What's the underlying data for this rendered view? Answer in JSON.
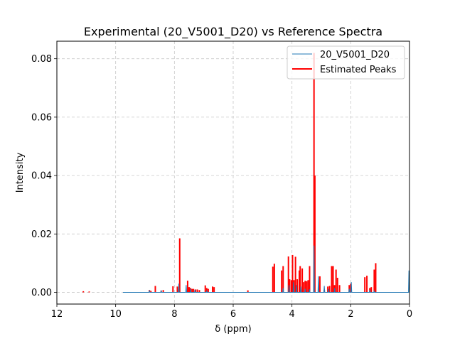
{
  "chart_data": {
    "type": "line",
    "title": "Experimental (20_V5001_D20) vs Reference Spectra",
    "xlabel": "δ (ppm)",
    "ylabel": "Intensity",
    "xlim": [
      12,
      0
    ],
    "ylim": [
      -0.004,
      0.086
    ],
    "x_reversed": true,
    "grid": true,
    "legend_position": "top-right",
    "xticks": [
      12,
      10,
      8,
      6,
      4,
      2,
      0
    ],
    "xtick_labels": [
      "12",
      "10",
      "8",
      "6",
      "4",
      "2",
      "0"
    ],
    "yticks": [
      0.0,
      0.02,
      0.04,
      0.06,
      0.08
    ],
    "ytick_labels": [
      "0.00",
      "0.02",
      "0.04",
      "0.06",
      "0.08"
    ],
    "series": [
      {
        "name": "20_V5001_D20",
        "kind": "spectrum",
        "color": "#1f77b4",
        "x_start": 9.75,
        "x_end": 0.0,
        "baseline": 0.0,
        "peaks": [
          {
            "x": 8.85,
            "y": 0.0005
          },
          {
            "x": 8.45,
            "y": 0.0007
          },
          {
            "x": 7.85,
            "y": 0.003
          },
          {
            "x": 7.6,
            "y": 0.0025
          },
          {
            "x": 7.45,
            "y": 0.0012
          },
          {
            "x": 7.3,
            "y": 0.0009
          },
          {
            "x": 6.9,
            "y": 0.0006
          },
          {
            "x": 4.3,
            "y": 0.0015
          },
          {
            "x": 4.1,
            "y": 0.0025
          },
          {
            "x": 3.95,
            "y": 0.0035
          },
          {
            "x": 3.85,
            "y": 0.0025
          },
          {
            "x": 3.7,
            "y": 0.002
          },
          {
            "x": 3.55,
            "y": 0.0012
          },
          {
            "x": 3.4,
            "y": 0.001
          },
          {
            "x": 3.25,
            "y": 0.016
          },
          {
            "x": 3.1,
            "y": 0.0055
          },
          {
            "x": 2.9,
            "y": 0.0022
          },
          {
            "x": 2.75,
            "y": 0.0012
          },
          {
            "x": 2.55,
            "y": 0.0015
          },
          {
            "x": 2.05,
            "y": 0.0012
          },
          {
            "x": 1.98,
            "y": 0.0035
          },
          {
            "x": 1.35,
            "y": 0.0008
          },
          {
            "x": 1.2,
            "y": 0.0006
          },
          {
            "x": 0.02,
            "y": 0.0075
          }
        ]
      },
      {
        "name": "Estimated Peaks",
        "kind": "sticks",
        "color": "#ff0000",
        "peaks": [
          {
            "x": 11.1,
            "y": 0.0004
          },
          {
            "x": 10.9,
            "y": 0.0003
          },
          {
            "x": 8.85,
            "y": 0.0008
          },
          {
            "x": 8.8,
            "y": 0.0005
          },
          {
            "x": 8.65,
            "y": 0.0022
          },
          {
            "x": 8.45,
            "y": 0.0006
          },
          {
            "x": 8.38,
            "y": 0.0008
          },
          {
            "x": 8.05,
            "y": 0.0021
          },
          {
            "x": 7.9,
            "y": 0.002
          },
          {
            "x": 7.82,
            "y": 0.0185
          },
          {
            "x": 7.55,
            "y": 0.004
          },
          {
            "x": 7.5,
            "y": 0.0018
          },
          {
            "x": 7.45,
            "y": 0.0015
          },
          {
            "x": 7.4,
            "y": 0.0012
          },
          {
            "x": 7.35,
            "y": 0.0012
          },
          {
            "x": 7.28,
            "y": 0.001
          },
          {
            "x": 7.22,
            "y": 0.001
          },
          {
            "x": 7.15,
            "y": 0.0008
          },
          {
            "x": 6.95,
            "y": 0.0024
          },
          {
            "x": 6.9,
            "y": 0.0015
          },
          {
            "x": 6.85,
            "y": 0.0012
          },
          {
            "x": 6.7,
            "y": 0.002
          },
          {
            "x": 6.65,
            "y": 0.0018
          },
          {
            "x": 5.5,
            "y": 0.0007
          },
          {
            "x": 4.65,
            "y": 0.0088
          },
          {
            "x": 4.6,
            "y": 0.0098
          },
          {
            "x": 4.35,
            "y": 0.0075
          },
          {
            "x": 4.3,
            "y": 0.009
          },
          {
            "x": 4.12,
            "y": 0.0123
          },
          {
            "x": 4.08,
            "y": 0.0045
          },
          {
            "x": 4.02,
            "y": 0.0042
          },
          {
            "x": 3.98,
            "y": 0.0128
          },
          {
            "x": 3.93,
            "y": 0.0042
          },
          {
            "x": 3.88,
            "y": 0.0122
          },
          {
            "x": 3.82,
            "y": 0.0045
          },
          {
            "x": 3.75,
            "y": 0.0075
          },
          {
            "x": 3.72,
            "y": 0.009
          },
          {
            "x": 3.65,
            "y": 0.0082
          },
          {
            "x": 3.6,
            "y": 0.0035
          },
          {
            "x": 3.55,
            "y": 0.004
          },
          {
            "x": 3.5,
            "y": 0.0038
          },
          {
            "x": 3.45,
            "y": 0.0042
          },
          {
            "x": 3.4,
            "y": 0.009
          },
          {
            "x": 3.25,
            "y": 0.082
          },
          {
            "x": 3.22,
            "y": 0.04
          },
          {
            "x": 3.05,
            "y": 0.0055
          },
          {
            "x": 2.9,
            "y": 0.0008
          },
          {
            "x": 2.78,
            "y": 0.002
          },
          {
            "x": 2.72,
            "y": 0.0022
          },
          {
            "x": 2.65,
            "y": 0.009
          },
          {
            "x": 2.6,
            "y": 0.009
          },
          {
            "x": 2.55,
            "y": 0.0025
          },
          {
            "x": 2.5,
            "y": 0.0078
          },
          {
            "x": 2.45,
            "y": 0.005
          },
          {
            "x": 2.38,
            "y": 0.0025
          },
          {
            "x": 2.05,
            "y": 0.0025
          },
          {
            "x": 2.0,
            "y": 0.003
          },
          {
            "x": 1.52,
            "y": 0.0052
          },
          {
            "x": 1.45,
            "y": 0.0057
          },
          {
            "x": 1.35,
            "y": 0.0015
          },
          {
            "x": 1.3,
            "y": 0.0018
          },
          {
            "x": 1.2,
            "y": 0.0078
          },
          {
            "x": 1.15,
            "y": 0.01
          }
        ]
      }
    ]
  }
}
